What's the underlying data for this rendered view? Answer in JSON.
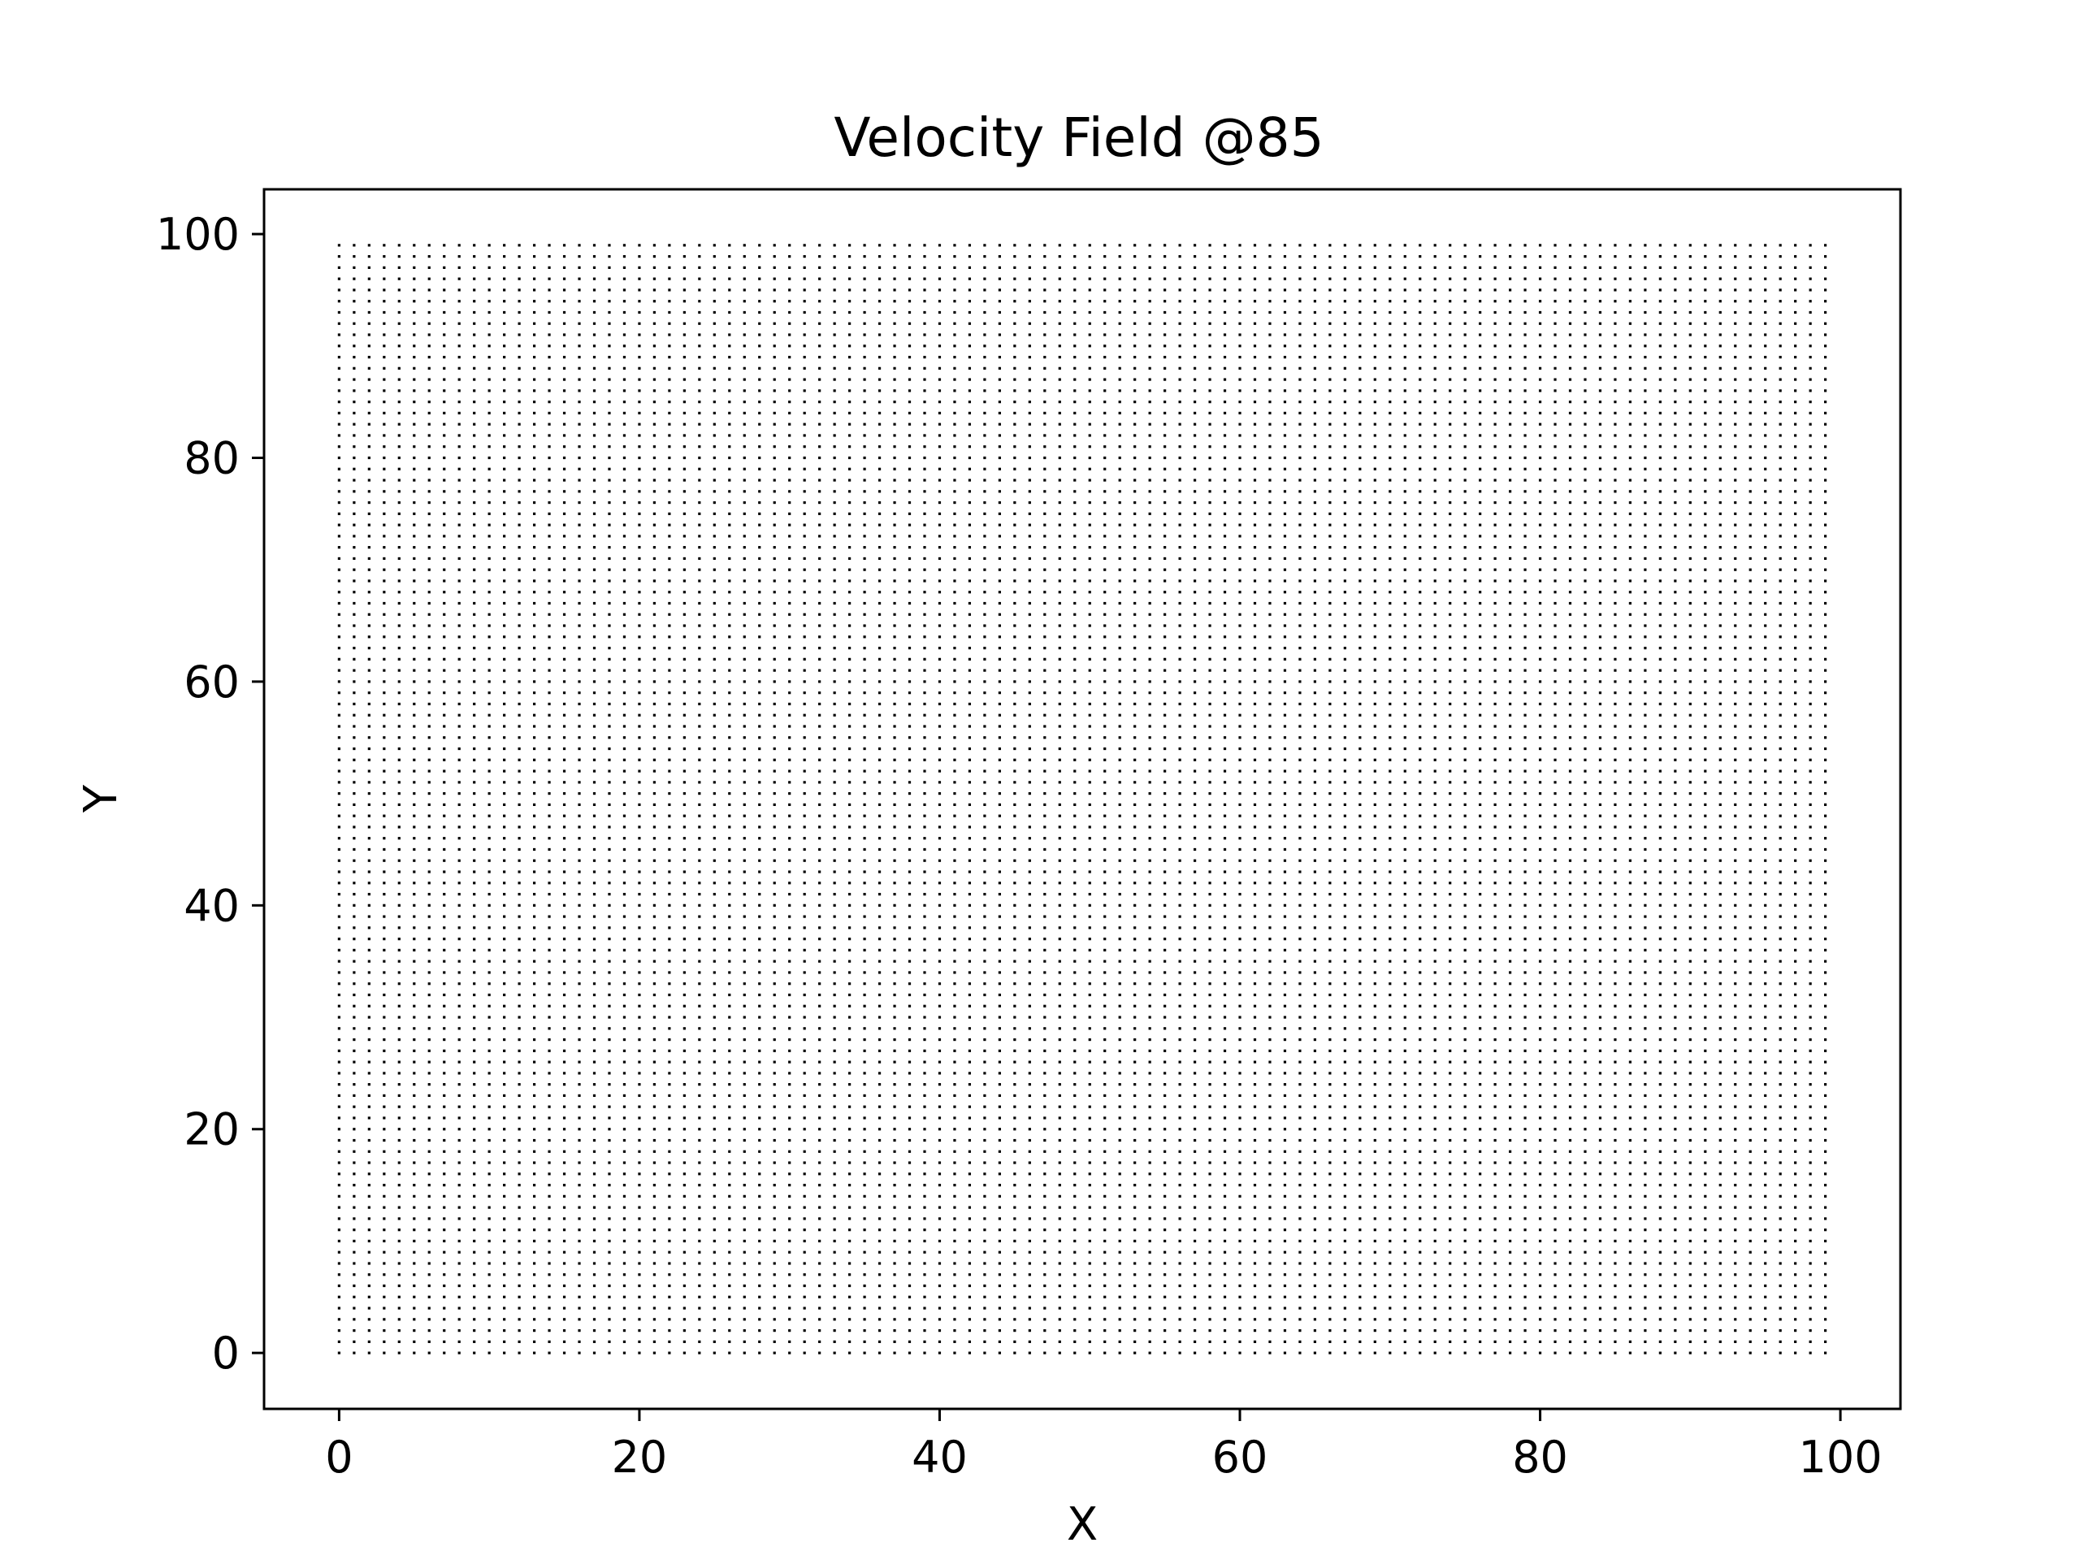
{
  "chart_data": {
    "type": "quiver",
    "title": "Velocity Field @85",
    "xlabel": "X",
    "ylabel": "Y",
    "xlim": [
      -5,
      104
    ],
    "ylim": [
      -5,
      104
    ],
    "x_ticks": [
      0,
      20,
      40,
      60,
      80,
      100
    ],
    "y_ticks": [
      0,
      20,
      40,
      60,
      80,
      100
    ],
    "x_tick_labels": [
      "0",
      "20",
      "40",
      "60",
      "80",
      "100"
    ],
    "y_tick_labels": [
      "0",
      "20",
      "40",
      "60",
      "80",
      "100"
    ],
    "grid": false,
    "legend": "none",
    "field": {
      "x_start": 0,
      "x_end": 99,
      "x_step": 1,
      "y_start": 0,
      "y_end": 99,
      "y_step": 1,
      "u": 0,
      "v": 0
    },
    "colors": {
      "marker": "#000000",
      "axes": "#000000",
      "background": "#ffffff"
    }
  }
}
